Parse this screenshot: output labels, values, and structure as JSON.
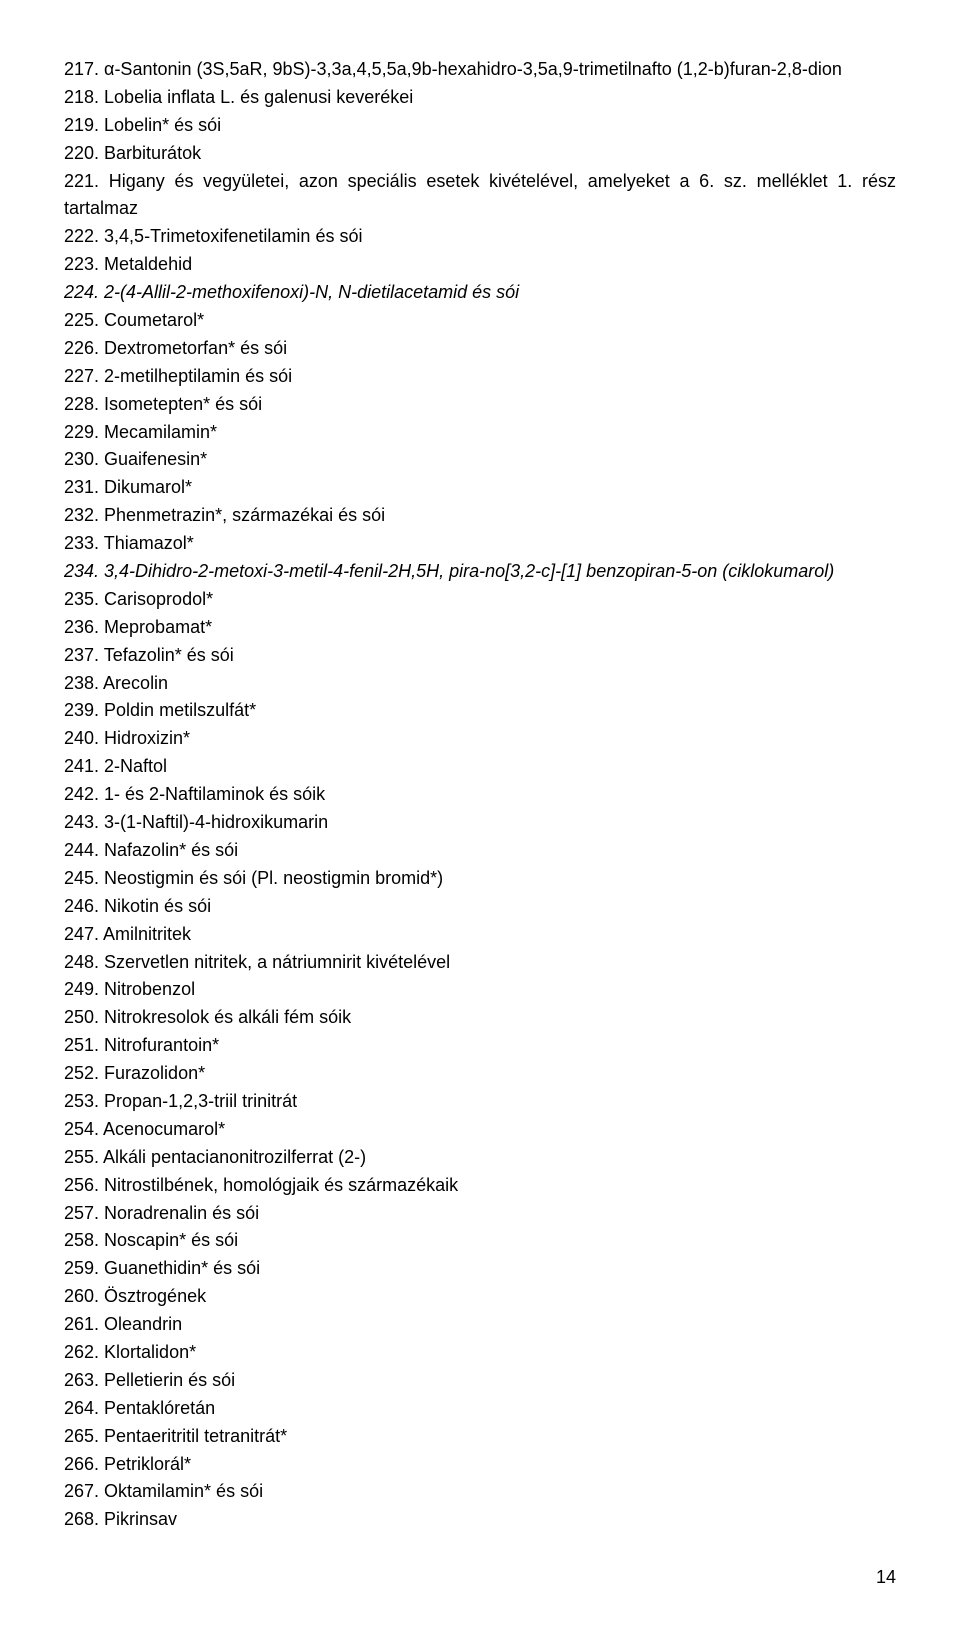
{
  "lines": [
    {
      "n": "217",
      "txt": "217. α-Santonin (3S,5aR, 9bS)-3,3a,4,5,5a,9b-hexahidro-3,5a,9-trimetilnafto (1,2-b)furan-2,8-dion",
      "italic": false
    },
    {
      "n": "218",
      "txt": "218. Lobelia inflata L. és galenusi keverékei",
      "italic": false
    },
    {
      "n": "219",
      "txt": "219. Lobelin* és sói",
      "italic": false
    },
    {
      "n": "220",
      "txt": "220. Barbiturátok",
      "italic": false
    },
    {
      "n": "221",
      "txt": "221. Higany és vegyületei, azon speciális esetek kivételével, amelyeket a 6. sz. melléklet 1. rész tartalmaz",
      "italic": false,
      "justify": true
    },
    {
      "n": "222",
      "txt": "222. 3,4,5-Trimetoxifenetilamin és sói",
      "italic": false
    },
    {
      "n": "223",
      "txt": "223. Metaldehid",
      "italic": false
    },
    {
      "n": "224",
      "txt": "224. 2-(4-Allil-2-methoxifenoxi)-N, N-dietilacetamid és sói",
      "italic": true
    },
    {
      "n": "225",
      "txt": "225. Coumetarol*",
      "italic": false
    },
    {
      "n": "226",
      "txt": "226. Dextrometorfan* és sói",
      "italic": false
    },
    {
      "n": "227",
      "txt": "227. 2-metilheptilamin és sói",
      "italic": false
    },
    {
      "n": "228",
      "txt": "228. Isometepten* és sói",
      "italic": false
    },
    {
      "n": "229",
      "txt": "229. Mecamilamin*",
      "italic": false
    },
    {
      "n": "230",
      "txt": "230. Guaifenesin*",
      "italic": false
    },
    {
      "n": "231",
      "txt": "231. Dikumarol*",
      "italic": false
    },
    {
      "n": "232",
      "txt": "232. Phenmetrazin*, származékai és sói",
      "italic": false
    },
    {
      "n": "233",
      "txt": "233. Thiamazol*",
      "italic": false
    },
    {
      "n": "234",
      "txt": "234. 3,4-Dihidro-2-metoxi-3-metil-4-fenil-2H,5H, pira-no[3,2-c]-[1] benzopiran-5-on (ciklokumarol)",
      "italic": true,
      "justify": true
    },
    {
      "n": "235",
      "txt": "235. Carisoprodol*",
      "italic": false
    },
    {
      "n": "236",
      "txt": "236. Meprobamat*",
      "italic": false
    },
    {
      "n": "237",
      "txt": "237. Tefazolin* és sói",
      "italic": false
    },
    {
      "n": "238",
      "txt": "238. Arecolin",
      "italic": false
    },
    {
      "n": "239",
      "txt": "239. Poldin metilszulfát*",
      "italic": false
    },
    {
      "n": "240",
      "txt": "240. Hidroxizin*",
      "italic": false
    },
    {
      "n": "241",
      "txt": "241. 2-Naftol",
      "italic": false
    },
    {
      "n": "242",
      "txt": "242. 1- és 2-Naftilaminok és sóik",
      "italic": false
    },
    {
      "n": "243",
      "txt": "243. 3-(1-Naftil)-4-hidroxikumarin",
      "italic": false
    },
    {
      "n": "244",
      "txt": "244. Nafazolin* és sói",
      "italic": false
    },
    {
      "n": "245",
      "txt": "245. Neostigmin és sói (Pl. neostigmin bromid*)",
      "italic": false
    },
    {
      "n": "246",
      "txt": "246. Nikotin és sói",
      "italic": false
    },
    {
      "n": "247",
      "txt": "247. Amilnitritek",
      "italic": false
    },
    {
      "n": "248",
      "txt": "248. Szervetlen nitritek, a nátriumnirit kivételével",
      "italic": false
    },
    {
      "n": "249",
      "txt": "249. Nitrobenzol",
      "italic": false
    },
    {
      "n": "250",
      "txt": "250. Nitrokresolok és alkáli fém sóik",
      "italic": false
    },
    {
      "n": "251",
      "txt": "251. Nitrofurantoin*",
      "italic": false
    },
    {
      "n": "252",
      "txt": "252. Furazolidon*",
      "italic": false
    },
    {
      "n": "253",
      "txt": "253. Propan-1,2,3-triil trinitrát",
      "italic": false
    },
    {
      "n": "254",
      "txt": "254. Acenocumarol*",
      "italic": false
    },
    {
      "n": "255",
      "txt": "255. Alkáli pentacianonitrozilferrat (2-)",
      "italic": false
    },
    {
      "n": "256",
      "txt": "256. Nitrostilbének, homológjaik és származékaik",
      "italic": false
    },
    {
      "n": "257",
      "txt": "257. Noradrenalin és sói",
      "italic": false
    },
    {
      "n": "258",
      "txt": "258. Noscapin* és sói",
      "italic": false
    },
    {
      "n": "259",
      "txt": "259. Guanethidin* és sói",
      "italic": false
    },
    {
      "n": "260",
      "txt": "260. Ösztrogének",
      "italic": false
    },
    {
      "n": "261",
      "txt": "261. Oleandrin",
      "italic": false
    },
    {
      "n": "262",
      "txt": "262. Klortalidon*",
      "italic": false
    },
    {
      "n": "263",
      "txt": "263. Pelletierin és sói",
      "italic": false
    },
    {
      "n": "264",
      "txt": "264. Pentaklóretán",
      "italic": false
    },
    {
      "n": "265",
      "txt": "265. Pentaeritritil tetranitrát*",
      "italic": false
    },
    {
      "n": "266",
      "txt": "266. Petriklorál*",
      "italic": false
    },
    {
      "n": "267",
      "txt": "267. Oktamilamin* és sói",
      "italic": false
    },
    {
      "n": "268",
      "txt": "268. Pikrinsav",
      "italic": false
    }
  ],
  "page_number": "14"
}
